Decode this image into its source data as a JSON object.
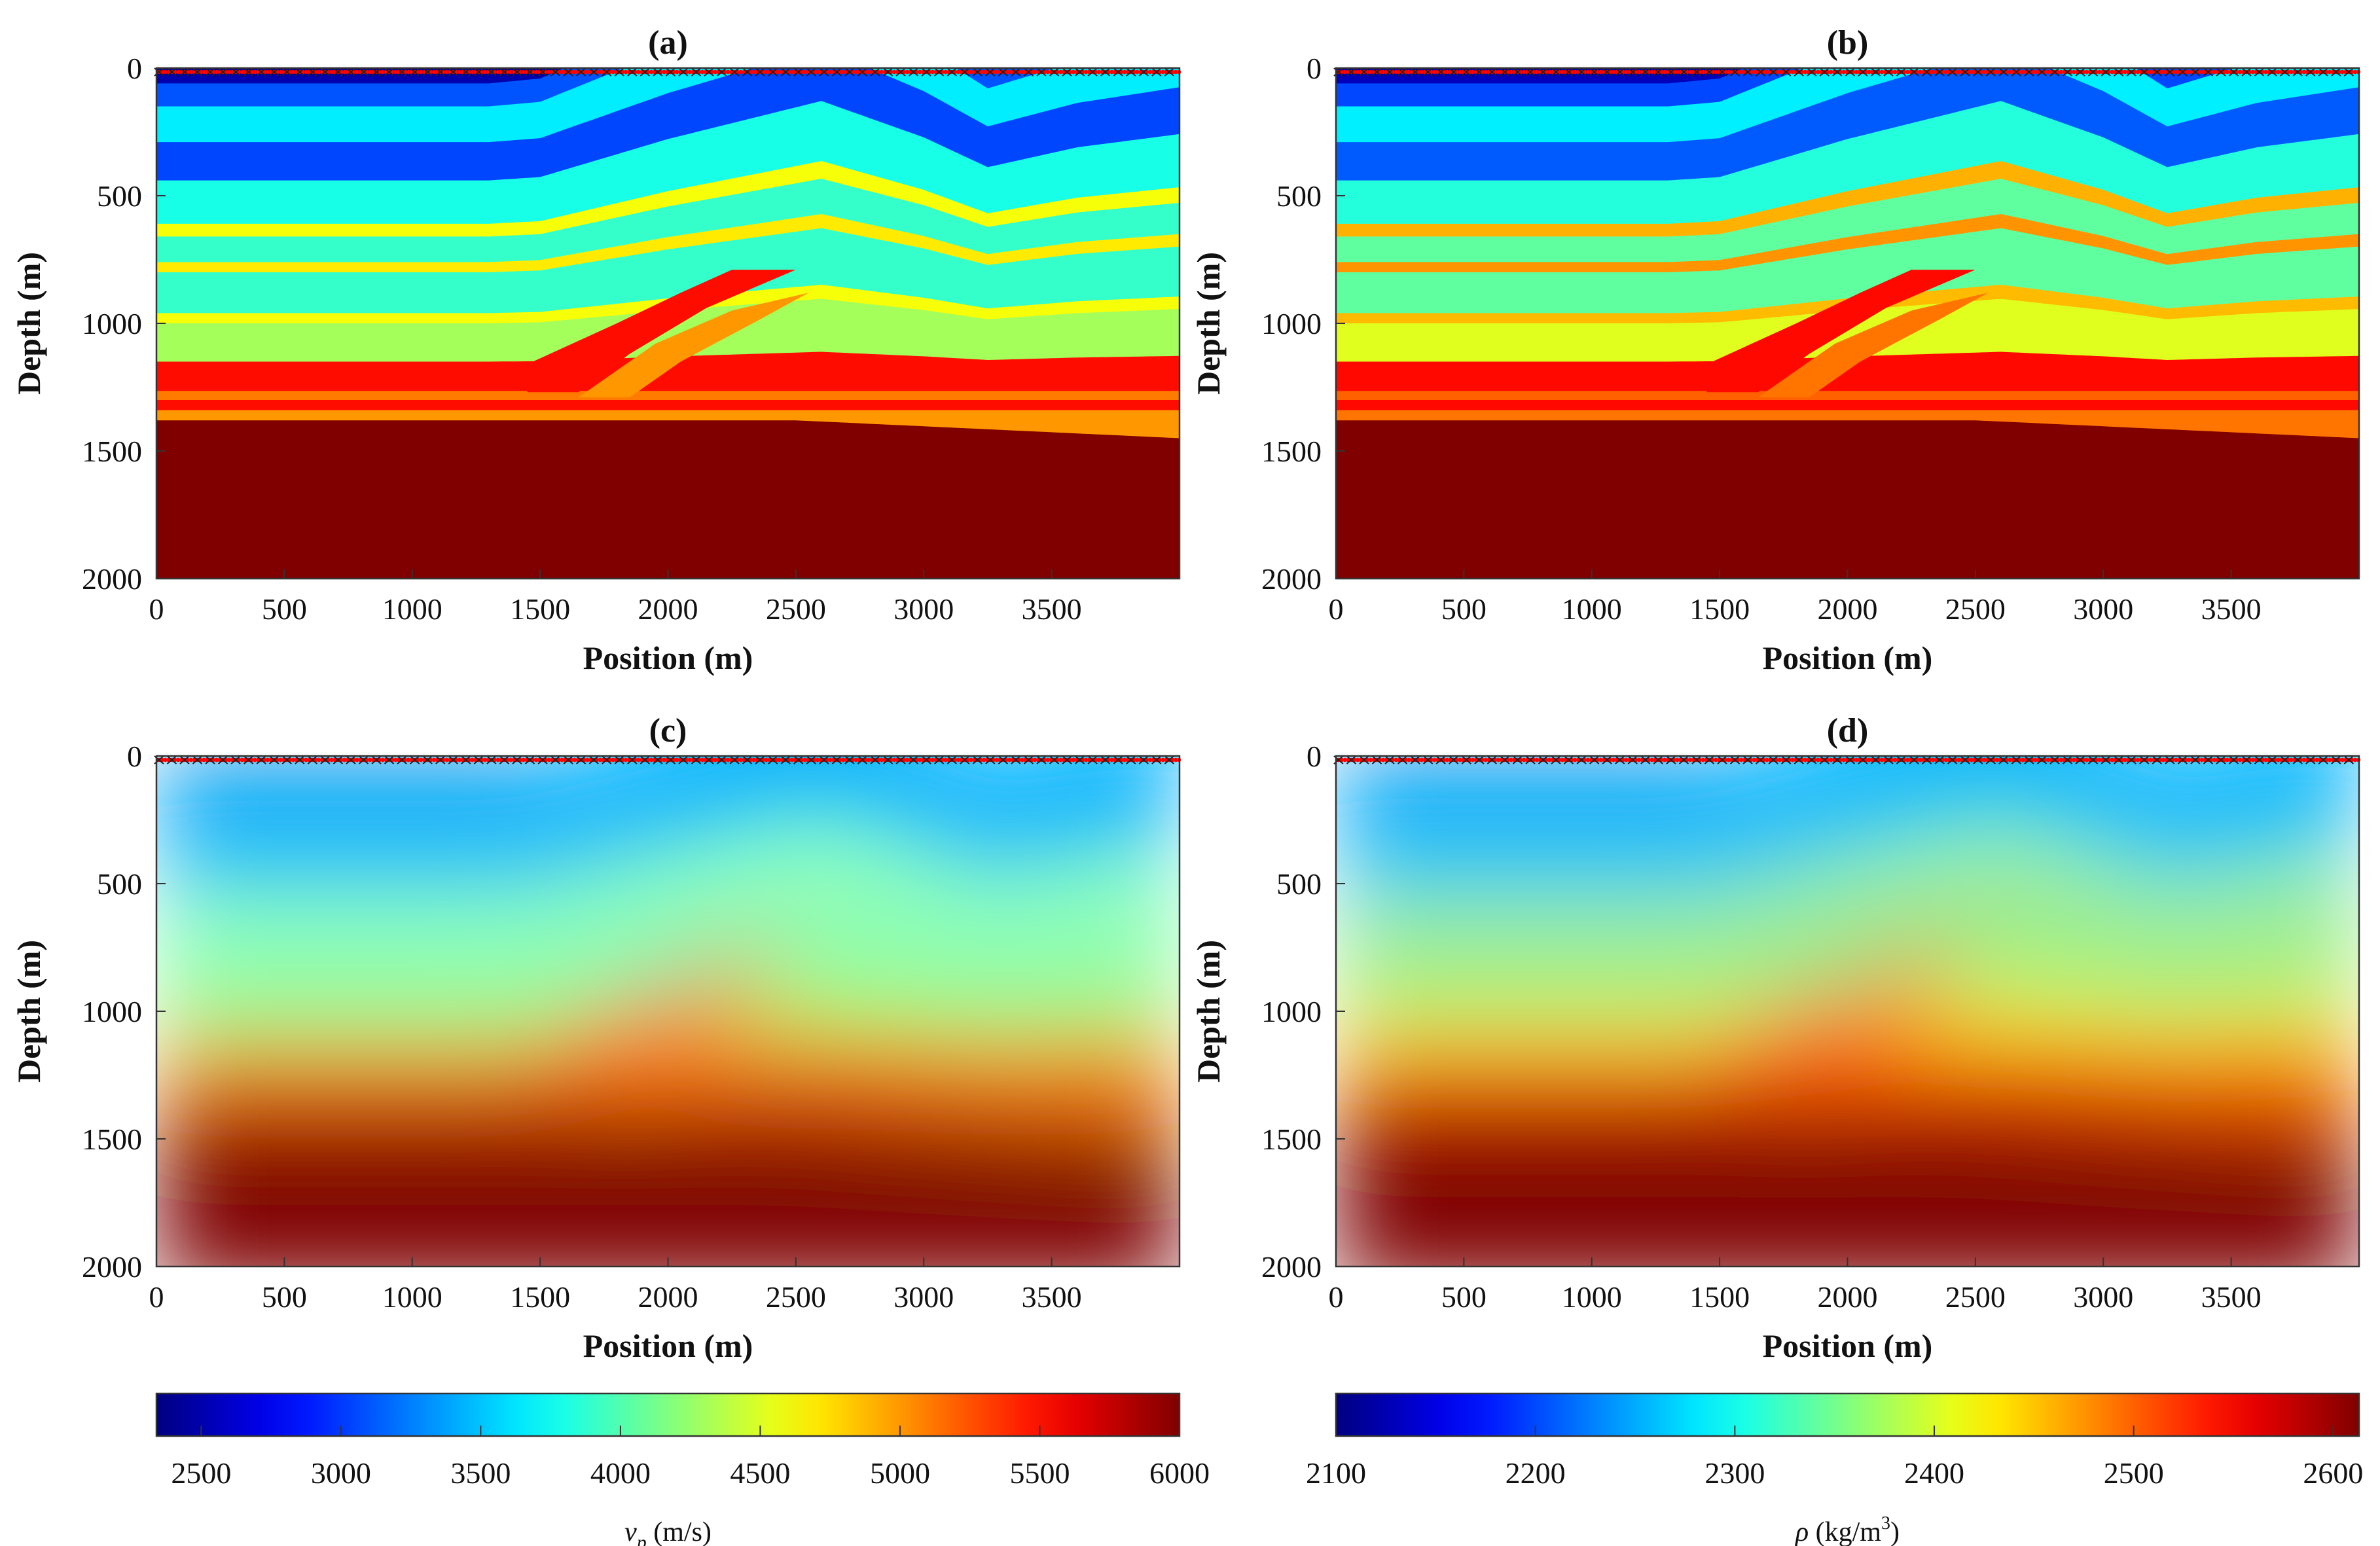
{
  "chart_data": [
    {
      "type": "heatmap",
      "panel": "a",
      "title": "(a)",
      "property": "vp",
      "smoothed": false,
      "xlabel": "Position (m)",
      "ylabel": "Depth (m)",
      "xlim": [
        0,
        4000
      ],
      "ylim": [
        0,
        2000
      ],
      "y_reversed": true,
      "xticks": [
        "0",
        "500",
        "1000",
        "1500",
        "2000",
        "2500",
        "3000",
        "3500"
      ],
      "yticks": [
        "0",
        "500",
        "1000",
        "1500",
        "2000"
      ],
      "colorbar": 0
    },
    {
      "type": "heatmap",
      "panel": "b",
      "title": "(b)",
      "property": "rho",
      "smoothed": false,
      "xlabel": "Position (m)",
      "ylabel": "Depth (m)",
      "xlim": [
        0,
        4000
      ],
      "ylim": [
        0,
        2000
      ],
      "y_reversed": true,
      "xticks": [
        "0",
        "500",
        "1000",
        "1500",
        "2000",
        "2500",
        "3000",
        "3500"
      ],
      "yticks": [
        "0",
        "500",
        "1000",
        "1500",
        "2000"
      ],
      "colorbar": 1
    },
    {
      "type": "heatmap",
      "panel": "c",
      "title": "(c)",
      "property": "vp",
      "smoothed": true,
      "xlabel": "Position (m)",
      "ylabel": "Depth (m)",
      "xlim": [
        0,
        4000
      ],
      "ylim": [
        0,
        2000
      ],
      "y_reversed": true,
      "xticks": [
        "0",
        "500",
        "1000",
        "1500",
        "2000",
        "2500",
        "3000",
        "3500"
      ],
      "yticks": [
        "0",
        "500",
        "1000",
        "1500",
        "2000"
      ],
      "colorbar": 0
    },
    {
      "type": "heatmap",
      "panel": "d",
      "title": "(d)",
      "property": "rho",
      "smoothed": true,
      "xlabel": "Position (m)",
      "ylabel": "Depth (m)",
      "xlim": [
        0,
        4000
      ],
      "ylim": [
        0,
        2000
      ],
      "y_reversed": true,
      "xticks": [
        "0",
        "500",
        "1000",
        "1500",
        "2000",
        "2500",
        "3000",
        "3500"
      ],
      "yticks": [
        "0",
        "500",
        "1000",
        "1500",
        "2000"
      ],
      "colorbar": 1
    }
  ],
  "colorbars": [
    {
      "property": "vp",
      "symbol": "v",
      "subscript": "p",
      "unit": " (m/s)",
      "range": [
        2340,
        6000
      ],
      "ticks": [
        2500,
        3000,
        3500,
        4000,
        4500,
        5000,
        5500,
        6000
      ],
      "colormap": "jet"
    },
    {
      "property": "rho",
      "symbol": "ρ",
      "unit_pre": " (kg/m",
      "unit_sup": "3",
      "unit_post": ")",
      "range": [
        2100,
        2613
      ],
      "ticks": [
        2100,
        2200,
        2300,
        2400,
        2500,
        2600
      ],
      "colormap": "jet"
    }
  ],
  "model": {
    "layers": [
      {
        "top_depth": 0,
        "vp": 2500,
        "rho": 2130
      },
      {
        "top_depth": 60,
        "vp": 3100,
        "rho": 2200
      },
      {
        "top_depth": 150,
        "vp": 3650,
        "rho": 2285
      },
      {
        "top_depth": 290,
        "vp": 3050,
        "rho": 2210
      },
      {
        "top_depth": 440,
        "vp": 3800,
        "rho": 2310
      },
      {
        "top_depth": 610,
        "vp": 4600,
        "rho": 2460
      },
      {
        "top_depth": 660,
        "vp": 3900,
        "rho": 2340
      },
      {
        "top_depth": 760,
        "vp": 4700,
        "rho": 2475
      },
      {
        "top_depth": 800,
        "vp": 3900,
        "rho": 2340
      },
      {
        "top_depth": 960,
        "vp": 4600,
        "rho": 2455
      },
      {
        "top_depth": 1000,
        "vp": 4300,
        "rho": 2405
      },
      {
        "top_depth": 1150,
        "vp": 5500,
        "rho": 2545
      },
      {
        "top_depth": 1265,
        "vp": 5100,
        "rho": 2500
      },
      {
        "top_depth": 1300,
        "vp": 5500,
        "rho": 2545
      },
      {
        "top_depth": 1340,
        "vp": 5000,
        "rho": 2490
      },
      {
        "top_depth": 1380,
        "vp": 6000,
        "rho": 2613
      }
    ],
    "wedges": [
      {
        "vp": 5500,
        "rho": 2545,
        "points": [
          [
            1450,
            1160
          ],
          [
            1800,
            1000
          ],
          [
            2050,
            880
          ],
          [
            2250,
            790
          ],
          [
            2500,
            790
          ],
          [
            2150,
            940
          ],
          [
            1850,
            1120
          ],
          [
            1650,
            1270
          ],
          [
            1450,
            1270
          ]
        ]
      },
      {
        "vp": 5000,
        "rho": 2490,
        "points": [
          [
            1650,
            1290
          ],
          [
            1950,
            1080
          ],
          [
            2250,
            950
          ],
          [
            2550,
            880
          ],
          [
            2350,
            990
          ],
          [
            2050,
            1150
          ],
          [
            1850,
            1290
          ]
        ]
      }
    ]
  },
  "markers": {
    "source_color": "#ff0000",
    "receiver_color": "#222222"
  }
}
